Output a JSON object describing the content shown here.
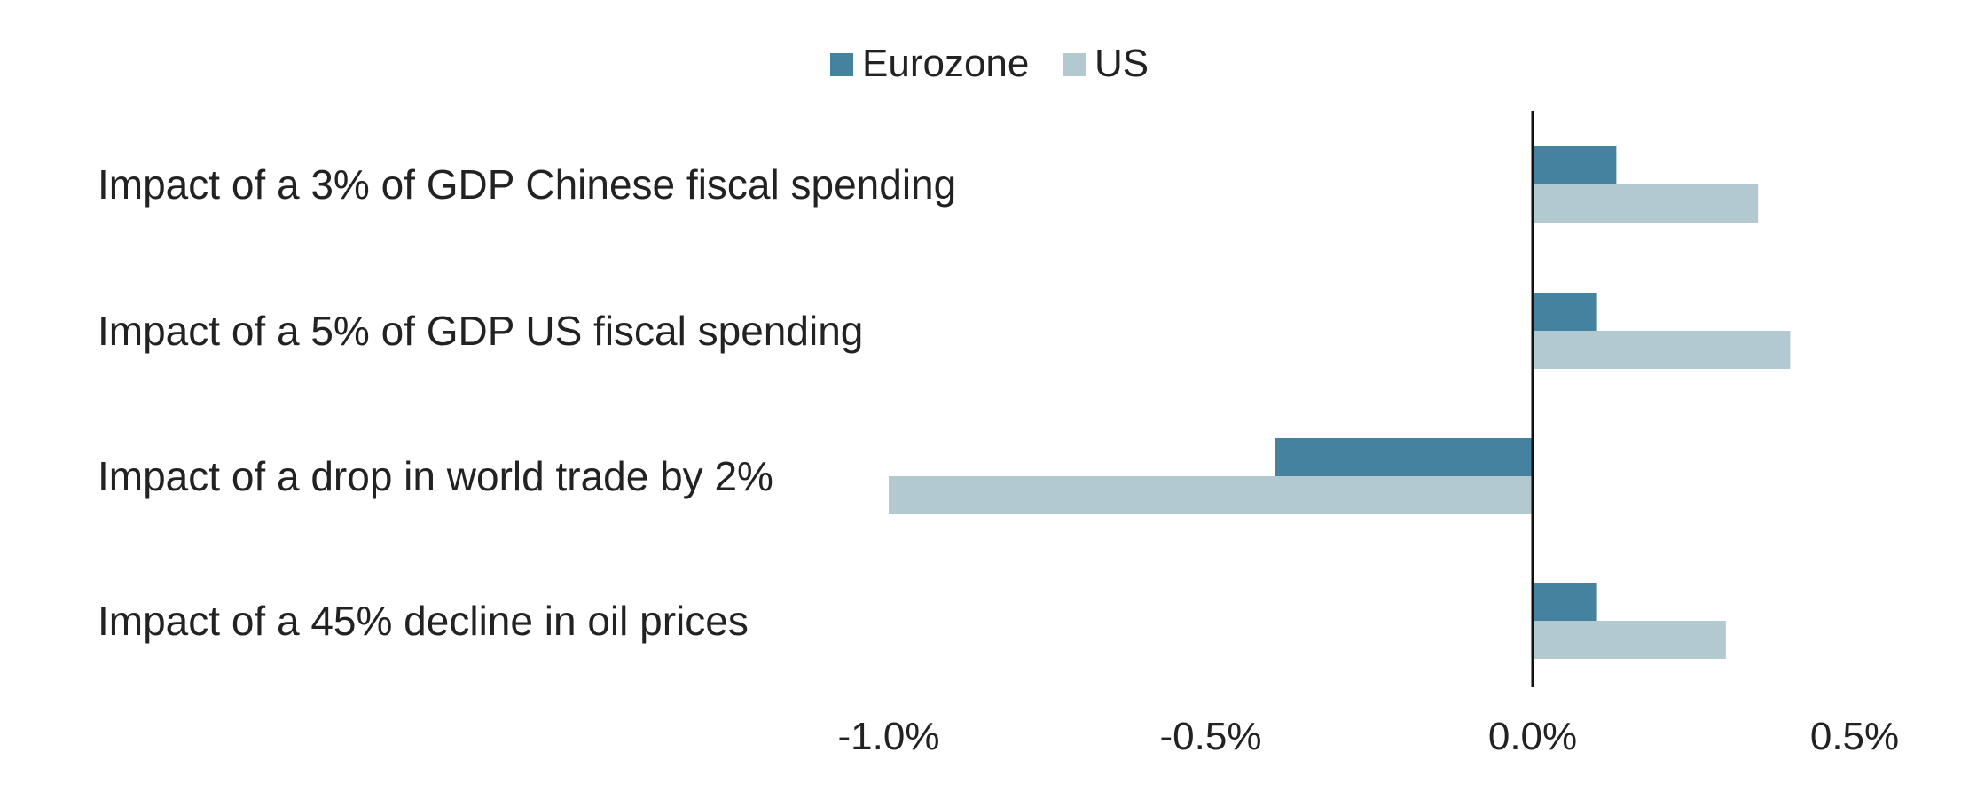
{
  "chart_data": {
    "type": "bar",
    "orientation": "horizontal",
    "categories": [
      "Impact of a 3% of GDP Chinese fiscal spending",
      "Impact of a 5% of GDP US fiscal spending",
      "Impact of a drop in world trade by 2%",
      "Impact of a 45% decline in oil prices"
    ],
    "series": [
      {
        "name": "Eurozone",
        "color": "#44829f",
        "values": [
          0.13,
          0.1,
          -0.4,
          0.1
        ]
      },
      {
        "name": "US",
        "color": "#b3c9d1",
        "values": [
          0.35,
          0.4,
          -1.0,
          0.3
        ]
      }
    ],
    "xlim": [
      -1.0,
      0.5
    ],
    "xticks": [
      -1.0,
      -0.5,
      0.0,
      0.5
    ],
    "xtick_labels": [
      "-1.0%",
      "-0.5%",
      "0.0%",
      "0.5%"
    ],
    "legend": "top-center",
    "grid": false
  }
}
